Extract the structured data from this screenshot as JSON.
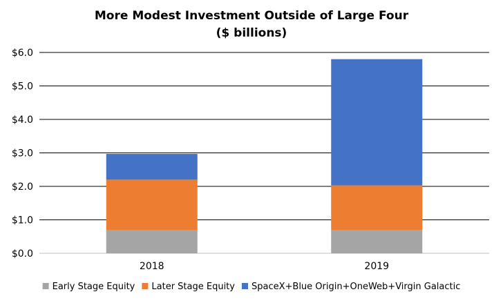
{
  "chart_data": {
    "type": "bar",
    "stacked": true,
    "title": "More Modest Investment Outside of Large Four",
    "subtitle": "($ billions)",
    "categories": [
      "2018",
      "2019"
    ],
    "series": [
      {
        "name": "Early Stage Equity",
        "color": "#A5A5A5",
        "values": [
          0.7,
          0.7
        ]
      },
      {
        "name": "Later Stage Equity",
        "color": "#ED7D31",
        "values": [
          1.5,
          1.33
        ]
      },
      {
        "name": "SpaceX+Blue Origin+OneWeb+Virgin Galactic",
        "color": "#4472C4",
        "values": [
          0.77,
          3.77
        ]
      }
    ],
    "ylim": [
      0,
      6
    ],
    "yticks": [
      0,
      1,
      2,
      3,
      4,
      5,
      6
    ],
    "ytick_labels": [
      "$0.0",
      "$1.0",
      "$2.0",
      "$3.0",
      "$4.0",
      "$5.0",
      "$6.0"
    ],
    "grid": true,
    "legend": "bottom",
    "xlabel": "",
    "ylabel": ""
  }
}
